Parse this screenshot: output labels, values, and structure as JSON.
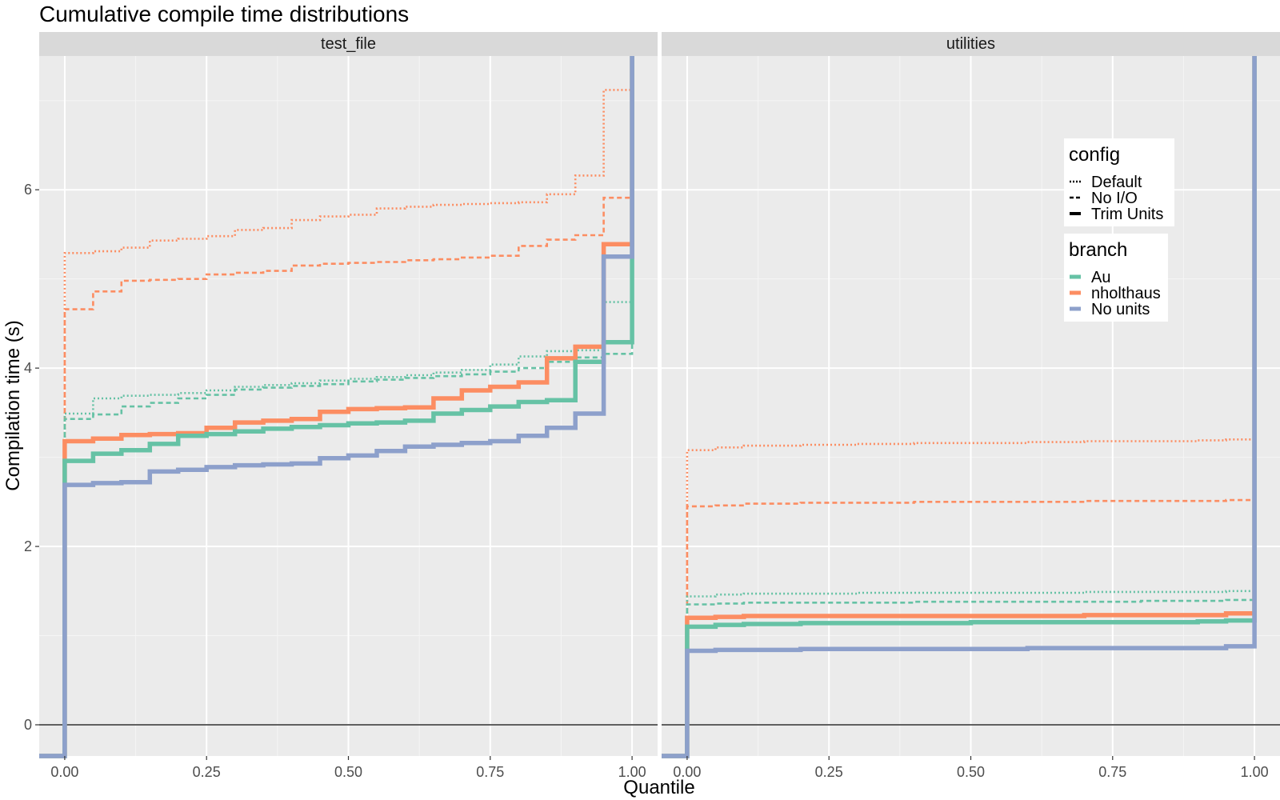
{
  "chart_data": {
    "type": "line",
    "subtype": "step",
    "title": "Cumulative compile time distributions",
    "xlabel": "Quantile",
    "ylabel": "Compilation time (s)",
    "xlim": [
      0,
      1
    ],
    "ylim": [
      -0.35,
      7.5
    ],
    "x_ticks": [
      0,
      0.25,
      0.5,
      0.75,
      1
    ],
    "x_tick_labels": [
      "0.00",
      "0.25",
      "0.50",
      "0.75",
      "1.00"
    ],
    "y_ticks": [
      0,
      2,
      4,
      6
    ],
    "y_tick_labels": [
      "0",
      "2",
      "4",
      "6"
    ],
    "hline": 0,
    "grid": true,
    "legend_position": "top-right",
    "legend": {
      "config": {
        "title": "config",
        "entries": [
          {
            "label": "Default",
            "linetype": "dotted"
          },
          {
            "label": "No I/O",
            "linetype": "dashed"
          },
          {
            "label": "Trim Units",
            "linetype": "solid"
          }
        ]
      },
      "branch": {
        "title": "branch",
        "entries": [
          {
            "label": "Au",
            "color": "#66c2a5"
          },
          {
            "label": "nholthaus",
            "color": "#fc8d62"
          },
          {
            "label": "No units",
            "color": "#8da0cb"
          }
        ]
      }
    },
    "panels": [
      {
        "name": "test_file",
        "series": [
          {
            "branch": "nholthaus",
            "config": "Default",
            "color": "#fc8d62",
            "linetype": "dotted",
            "x": [
              0,
              0.05,
              0.1,
              0.15,
              0.2,
              0.25,
              0.3,
              0.35,
              0.4,
              0.45,
              0.5,
              0.55,
              0.6,
              0.65,
              0.7,
              0.75,
              0.8,
              0.85,
              0.9,
              0.95
            ],
            "y": [
              5.29,
              5.31,
              5.35,
              5.43,
              5.45,
              5.48,
              5.55,
              5.57,
              5.66,
              5.7,
              5.72,
              5.79,
              5.81,
              5.83,
              5.84,
              5.85,
              5.86,
              5.95,
              6.16,
              7.12
            ]
          },
          {
            "branch": "nholthaus",
            "config": "No I/O",
            "color": "#fc8d62",
            "linetype": "dashed",
            "x": [
              0,
              0.05,
              0.1,
              0.15,
              0.2,
              0.25,
              0.3,
              0.35,
              0.4,
              0.45,
              0.5,
              0.55,
              0.6,
              0.65,
              0.7,
              0.75,
              0.8,
              0.85,
              0.9,
              0.95
            ],
            "y": [
              4.66,
              4.86,
              4.98,
              4.99,
              5.0,
              5.05,
              5.07,
              5.09,
              5.15,
              5.17,
              5.18,
              5.19,
              5.21,
              5.22,
              5.24,
              5.26,
              5.37,
              5.44,
              5.49,
              5.91
            ]
          },
          {
            "branch": "Au",
            "config": "Default",
            "color": "#66c2a5",
            "linetype": "dotted",
            "x": [
              0,
              0.05,
              0.1,
              0.15,
              0.2,
              0.25,
              0.3,
              0.35,
              0.4,
              0.45,
              0.5,
              0.55,
              0.6,
              0.65,
              0.7,
              0.75,
              0.8,
              0.85,
              0.9,
              0.95
            ],
            "y": [
              3.49,
              3.66,
              3.69,
              3.7,
              3.72,
              3.75,
              3.79,
              3.81,
              3.83,
              3.86,
              3.88,
              3.9,
              3.92,
              3.95,
              3.98,
              4.04,
              4.13,
              4.19,
              4.2,
              4.74
            ]
          },
          {
            "branch": "Au",
            "config": "No I/O",
            "color": "#66c2a5",
            "linetype": "dashed",
            "x": [
              0,
              0.05,
              0.1,
              0.15,
              0.2,
              0.25,
              0.3,
              0.35,
              0.4,
              0.45,
              0.5,
              0.55,
              0.6,
              0.65,
              0.7,
              0.75,
              0.8,
              0.85,
              0.9,
              0.95
            ],
            "y": [
              3.43,
              3.48,
              3.57,
              3.61,
              3.66,
              3.7,
              3.76,
              3.78,
              3.8,
              3.82,
              3.85,
              3.87,
              3.89,
              3.91,
              3.93,
              3.96,
              4.0,
              4.07,
              4.12,
              4.16
            ]
          },
          {
            "branch": "nholthaus",
            "config": "Trim Units",
            "color": "#fc8d62",
            "linetype": "solid",
            "x": [
              0,
              0.05,
              0.1,
              0.15,
              0.2,
              0.25,
              0.3,
              0.35,
              0.4,
              0.45,
              0.5,
              0.55,
              0.6,
              0.65,
              0.7,
              0.75,
              0.8,
              0.85,
              0.9,
              0.95
            ],
            "y": [
              3.18,
              3.21,
              3.25,
              3.26,
              3.27,
              3.33,
              3.39,
              3.41,
              3.43,
              3.51,
              3.54,
              3.55,
              3.56,
              3.66,
              3.75,
              3.79,
              3.84,
              4.11,
              4.24,
              5.39
            ]
          },
          {
            "branch": "Au",
            "config": "Trim Units",
            "color": "#66c2a5",
            "linetype": "solid",
            "x": [
              0,
              0.05,
              0.1,
              0.15,
              0.2,
              0.25,
              0.3,
              0.35,
              0.4,
              0.45,
              0.5,
              0.55,
              0.6,
              0.65,
              0.7,
              0.75,
              0.8,
              0.85,
              0.9,
              0.95
            ],
            "y": [
              2.96,
              3.04,
              3.08,
              3.15,
              3.24,
              3.26,
              3.29,
              3.32,
              3.34,
              3.36,
              3.38,
              3.39,
              3.41,
              3.49,
              3.53,
              3.57,
              3.62,
              3.64,
              4.07,
              4.29
            ]
          },
          {
            "branch": "No units",
            "config": "Trim Units",
            "color": "#8da0cb",
            "linetype": "solid",
            "x": [
              0,
              0.05,
              0.1,
              0.15,
              0.2,
              0.25,
              0.3,
              0.35,
              0.4,
              0.45,
              0.5,
              0.55,
              0.6,
              0.65,
              0.7,
              0.75,
              0.8,
              0.85,
              0.9,
              0.95
            ],
            "y": [
              2.69,
              2.71,
              2.72,
              2.84,
              2.86,
              2.89,
              2.91,
              2.92,
              2.93,
              2.99,
              3.02,
              3.07,
              3.12,
              3.14,
              3.16,
              3.18,
              3.24,
              3.33,
              3.49,
              5.25
            ]
          }
        ]
      },
      {
        "name": "utilities",
        "series": [
          {
            "branch": "nholthaus",
            "config": "Default",
            "color": "#fc8d62",
            "linetype": "dotted",
            "x": [
              0,
              0.05,
              0.1,
              0.2,
              0.3,
              0.4,
              0.5,
              0.6,
              0.7,
              0.8,
              0.9,
              0.95
            ],
            "y": [
              3.08,
              3.11,
              3.13,
              3.14,
              3.15,
              3.16,
              3.16,
              3.17,
              3.18,
              3.18,
              3.19,
              3.2
            ]
          },
          {
            "branch": "nholthaus",
            "config": "No I/O",
            "color": "#fc8d62",
            "linetype": "dashed",
            "x": [
              0,
              0.05,
              0.1,
              0.2,
              0.3,
              0.4,
              0.5,
              0.6,
              0.7,
              0.8,
              0.9,
              0.95
            ],
            "y": [
              2.45,
              2.46,
              2.48,
              2.49,
              2.49,
              2.5,
              2.5,
              2.5,
              2.51,
              2.51,
              2.51,
              2.52
            ]
          },
          {
            "branch": "Au",
            "config": "Default",
            "color": "#66c2a5",
            "linetype": "dotted",
            "x": [
              0,
              0.05,
              0.1,
              0.2,
              0.3,
              0.4,
              0.5,
              0.6,
              0.7,
              0.8,
              0.9,
              0.95
            ],
            "y": [
              1.44,
              1.46,
              1.47,
              1.47,
              1.48,
              1.48,
              1.48,
              1.48,
              1.49,
              1.49,
              1.49,
              1.5
            ]
          },
          {
            "branch": "Au",
            "config": "No I/O",
            "color": "#66c2a5",
            "linetype": "dashed",
            "x": [
              0,
              0.05,
              0.1,
              0.2,
              0.3,
              0.4,
              0.5,
              0.6,
              0.7,
              0.8,
              0.9,
              0.95
            ],
            "y": [
              1.35,
              1.36,
              1.37,
              1.37,
              1.37,
              1.38,
              1.38,
              1.38,
              1.38,
              1.39,
              1.39,
              1.4
            ]
          },
          {
            "branch": "nholthaus",
            "config": "Trim Units",
            "color": "#fc8d62",
            "linetype": "solid",
            "x": [
              0,
              0.05,
              0.1,
              0.2,
              0.3,
              0.4,
              0.5,
              0.6,
              0.7,
              0.8,
              0.9,
              0.95
            ],
            "y": [
              1.2,
              1.21,
              1.22,
              1.22,
              1.22,
              1.22,
              1.22,
              1.22,
              1.23,
              1.23,
              1.23,
              1.25
            ]
          },
          {
            "branch": "Au",
            "config": "Trim Units",
            "color": "#66c2a5",
            "linetype": "solid",
            "x": [
              0,
              0.05,
              0.1,
              0.2,
              0.3,
              0.4,
              0.5,
              0.6,
              0.7,
              0.8,
              0.9,
              0.95
            ],
            "y": [
              1.1,
              1.12,
              1.13,
              1.14,
              1.14,
              1.14,
              1.15,
              1.15,
              1.15,
              1.15,
              1.16,
              1.17
            ]
          },
          {
            "branch": "No units",
            "config": "Trim Units",
            "color": "#8da0cb",
            "linetype": "solid",
            "x": [
              0,
              0.05,
              0.1,
              0.2,
              0.3,
              0.4,
              0.5,
              0.6,
              0.7,
              0.8,
              0.9,
              0.95
            ],
            "y": [
              0.83,
              0.84,
              0.84,
              0.85,
              0.85,
              0.85,
              0.85,
              0.86,
              0.86,
              0.86,
              0.86,
              0.88
            ]
          }
        ]
      }
    ]
  }
}
